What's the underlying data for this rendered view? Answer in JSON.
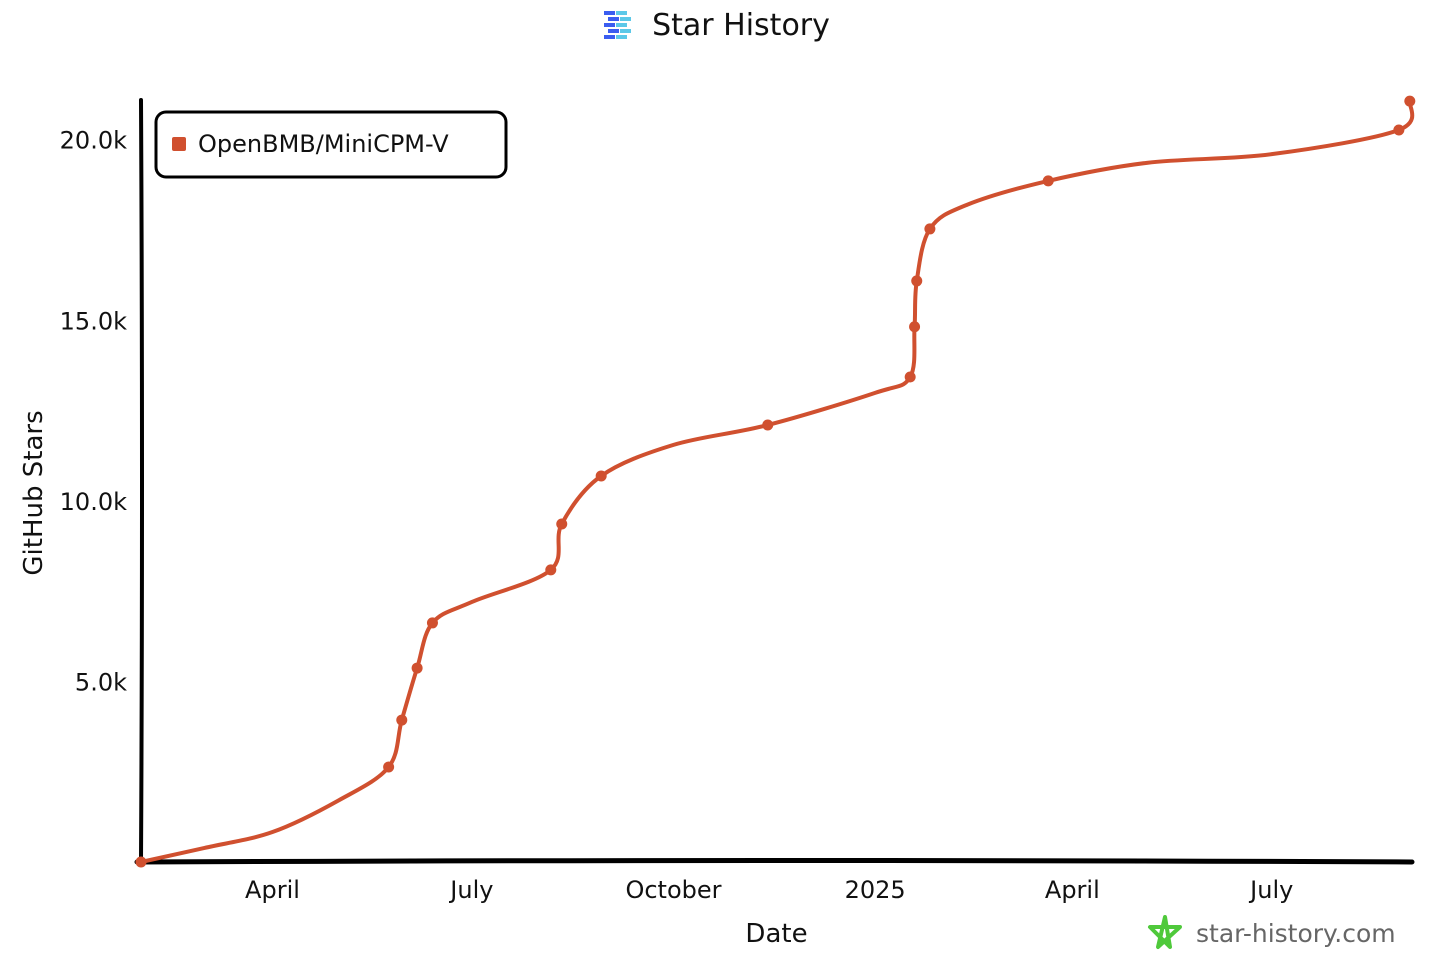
{
  "header": {
    "title": "Star History",
    "logo_icon": "star-history-logo-icon"
  },
  "watermark": {
    "text": "star-history.com",
    "icon": "green-star-icon",
    "icon_color": "#4fc93b"
  },
  "chart_data": {
    "type": "line",
    "title": "Star History",
    "xlabel": "Date",
    "ylabel": "GitHub Stars",
    "xlim": [
      "2024-02-01",
      "2025-09-03"
    ],
    "ylim": [
      0,
      21100
    ],
    "xticks": [
      {
        "date": "2024-04-01",
        "label": "April"
      },
      {
        "date": "2024-07-01",
        "label": "July"
      },
      {
        "date": "2024-10-01",
        "label": "October"
      },
      {
        "date": "2025-01-01",
        "label": "2025"
      },
      {
        "date": "2025-04-01",
        "label": "April"
      },
      {
        "date": "2025-07-01",
        "label": "July"
      }
    ],
    "yticks": [
      {
        "value": 5000,
        "label": "5.0k"
      },
      {
        "value": 10000,
        "label": "10.0k"
      },
      {
        "value": 15000,
        "label": "15.0k"
      },
      {
        "value": 20000,
        "label": "20.0k"
      }
    ],
    "grid": false,
    "legend": {
      "placement": "top-left"
    },
    "series": [
      {
        "name": "OpenBMB/MiniCPM-V",
        "color": "#d0502f",
        "points": [
          {
            "date": "2024-02-01",
            "stars": 0,
            "marker": true
          },
          {
            "date": "2024-03-01",
            "stars": 390,
            "marker": false
          },
          {
            "date": "2024-04-01",
            "stars": 830,
            "marker": false
          },
          {
            "date": "2024-05-01",
            "stars": 1700,
            "marker": false
          },
          {
            "date": "2024-05-24",
            "stars": 2630,
            "marker": true
          },
          {
            "date": "2024-05-30",
            "stars": 3930,
            "marker": true
          },
          {
            "date": "2024-06-06",
            "stars": 5370,
            "marker": true
          },
          {
            "date": "2024-06-13",
            "stars": 6620,
            "marker": true
          },
          {
            "date": "2024-07-01",
            "stars": 7200,
            "marker": false
          },
          {
            "date": "2024-08-06",
            "stars": 8090,
            "marker": true
          },
          {
            "date": "2024-08-11",
            "stars": 9360,
            "marker": true
          },
          {
            "date": "2024-08-29",
            "stars": 10690,
            "marker": true
          },
          {
            "date": "2024-10-01",
            "stars": 11550,
            "marker": false
          },
          {
            "date": "2024-11-13",
            "stars": 12100,
            "marker": true
          },
          {
            "date": "2025-01-01",
            "stars": 12990,
            "marker": false
          },
          {
            "date": "2025-01-17",
            "stars": 13430,
            "marker": true
          },
          {
            "date": "2025-01-19",
            "stars": 14820,
            "marker": true
          },
          {
            "date": "2025-01-20",
            "stars": 16090,
            "marker": true
          },
          {
            "date": "2025-01-26",
            "stars": 17530,
            "marker": true
          },
          {
            "date": "2025-02-12",
            "stars": 18200,
            "marker": false
          },
          {
            "date": "2025-03-21",
            "stars": 18860,
            "marker": true
          },
          {
            "date": "2025-05-05",
            "stars": 19360,
            "marker": false
          },
          {
            "date": "2025-07-01",
            "stars": 19600,
            "marker": false
          },
          {
            "date": "2025-08-28",
            "stars": 20270,
            "marker": true
          },
          {
            "date": "2025-09-02",
            "stars": 21070,
            "marker": true
          }
        ]
      }
    ]
  }
}
